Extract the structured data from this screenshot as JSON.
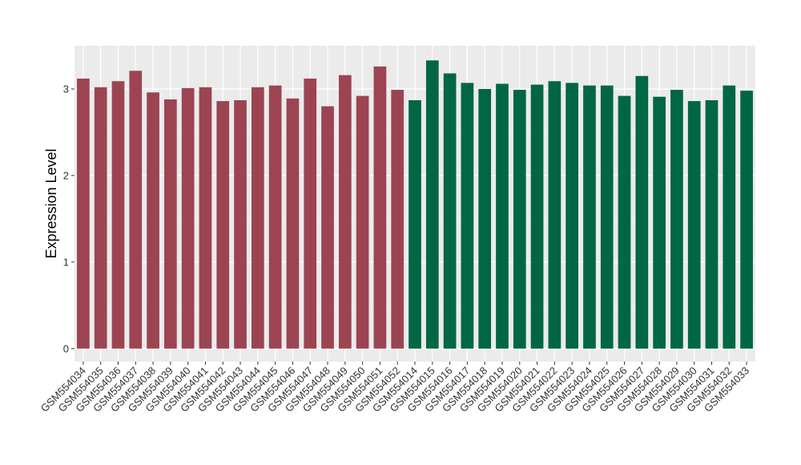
{
  "chart_data": {
    "type": "bar",
    "title": "",
    "xlabel": "",
    "ylabel": "Expression Level",
    "ylim": [
      -0.15,
      3.5
    ],
    "yticks": [
      0,
      1,
      2,
      3
    ],
    "grid": true,
    "legend": "none",
    "categories": [
      "GSM554034",
      "GSM554035",
      "GSM554036",
      "GSM554037",
      "GSM554038",
      "GSM554039",
      "GSM554040",
      "GSM554041",
      "GSM554042",
      "GSM554043",
      "GSM554044",
      "GSM554045",
      "GSM554046",
      "GSM554047",
      "GSM554048",
      "GSM554049",
      "GSM554050",
      "GSM554051",
      "GSM554052",
      "GSM554014",
      "GSM554015",
      "GSM554016",
      "GSM554017",
      "GSM554018",
      "GSM554019",
      "GSM554020",
      "GSM554021",
      "GSM554022",
      "GSM554023",
      "GSM554024",
      "GSM554025",
      "GSM554026",
      "GSM554027",
      "GSM554028",
      "GSM554029",
      "GSM554030",
      "GSM554031",
      "GSM554032",
      "GSM554033"
    ],
    "values": [
      3.12,
      3.02,
      3.09,
      3.21,
      2.96,
      2.88,
      3.01,
      3.02,
      2.86,
      2.87,
      3.02,
      3.04,
      2.89,
      3.12,
      2.8,
      3.16,
      2.92,
      3.26,
      2.99,
      2.87,
      3.33,
      3.18,
      3.07,
      3.0,
      3.06,
      2.99,
      3.05,
      3.09,
      3.07,
      3.04,
      3.04,
      2.92,
      3.15,
      2.91,
      2.99,
      2.86,
      2.87,
      3.04,
      2.98
    ],
    "groups": [
      0,
      0,
      0,
      0,
      0,
      0,
      0,
      0,
      0,
      0,
      0,
      0,
      0,
      0,
      0,
      0,
      0,
      0,
      0,
      1,
      1,
      1,
      1,
      1,
      1,
      1,
      1,
      1,
      1,
      1,
      1,
      1,
      1,
      1,
      1,
      1,
      1,
      1,
      1
    ],
    "colors": {
      "group_0": "#9c4452",
      "group_1": "#006644",
      "panel_bg": "#ebebeb",
      "grid_major": "#ffffff",
      "grid_minor": "#f5f5f5"
    }
  }
}
